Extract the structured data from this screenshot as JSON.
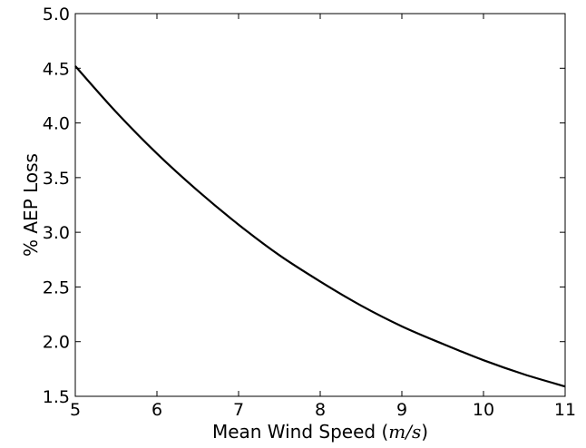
{
  "chart_data": {
    "type": "line",
    "title": "",
    "xlabel_text": "Mean Wind Speed (",
    "xlabel_unit": "m/s",
    "xlabel_close": ")",
    "ylabel": "% AEP Loss",
    "xlim": [
      5,
      11
    ],
    "ylim": [
      1.5,
      5.0
    ],
    "xticks": [
      5,
      6,
      7,
      8,
      9,
      10,
      11
    ],
    "yticks": [
      1.5,
      2.0,
      2.5,
      3.0,
      3.5,
      4.0,
      4.5,
      5.0
    ],
    "xtick_labels": [
      "5",
      "6",
      "7",
      "8",
      "9",
      "10",
      "11"
    ],
    "ytick_labels": [
      "1.5",
      "2.0",
      "2.5",
      "3.0",
      "3.5",
      "4.0",
      "4.5",
      "5.0"
    ],
    "grid": false,
    "legend": "none",
    "series": [
      {
        "color": "#000000",
        "x": [
          5.0,
          5.5,
          6.0,
          6.5,
          7.0,
          7.5,
          8.0,
          8.5,
          9.0,
          9.5,
          10.0,
          10.5,
          11.0
        ],
        "y": [
          4.52,
          4.1,
          3.72,
          3.38,
          3.07,
          2.79,
          2.55,
          2.33,
          2.14,
          1.98,
          1.83,
          1.7,
          1.59
        ]
      }
    ]
  }
}
